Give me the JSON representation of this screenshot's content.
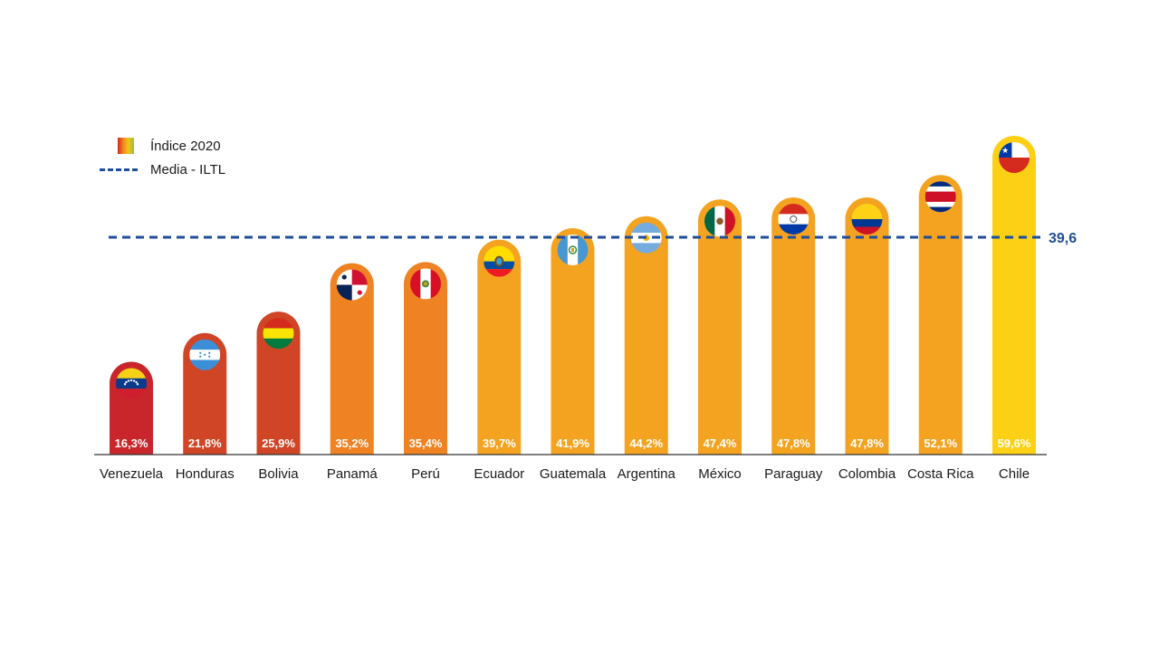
{
  "legend": {
    "index_label": "Índice 2020",
    "mean_label": "Media - ILTL"
  },
  "colors": {
    "red": "#c8262a",
    "red_orange": "#cf4526",
    "orange": "#ef8223",
    "amber": "#f4a321",
    "yellow": "#fcd015",
    "mean_line": "#1f4e9a",
    "axis": "#333333"
  },
  "chart_data": {
    "type": "bar",
    "title": "",
    "xlabel": "",
    "ylabel": "",
    "ylim": [
      0,
      65
    ],
    "categories": [
      "Venezuela",
      "Honduras",
      "Bolivia",
      "Panamá",
      "Perú",
      "Ecuador",
      "Guatemala",
      "Argentina",
      "México",
      "Paraguay",
      "Colombia",
      "Costa Rica",
      "Chile"
    ],
    "series": [
      {
        "values": [
          16.3,
          21.8,
          25.9,
          35.2,
          35.4,
          39.7,
          41.9,
          44.2,
          47.4,
          47.8,
          47.8,
          52.1,
          59.6
        ],
        "value_labels": [
          "16,3%",
          "21,8%",
          "25,9%",
          "35,2%",
          "35,4%",
          "39,7%",
          "41,9%",
          "44,2%",
          "47,4%",
          "47,8%",
          "47,8%",
          "52,1%",
          "59,6%"
        ],
        "bar_colors": [
          "#c8262a",
          "#cf4526",
          "#cf4526",
          "#ef8223",
          "#ef8223",
          "#f4a321",
          "#f4a321",
          "#f4a321",
          "#f4a321",
          "#f4a321",
          "#f4a321",
          "#f4a321",
          "#fcd015"
        ]
      }
    ],
    "flags": [
      "venezuela-flag",
      "honduras-flag",
      "bolivia-flag",
      "panama-flag",
      "peru-flag",
      "ecuador-flag",
      "guatemala-flag",
      "argentina-flag",
      "mexico-flag",
      "paraguay-flag",
      "colombia-flag",
      "costa-rica-flag",
      "chile-flag"
    ],
    "mean": {
      "value": 39.6,
      "label": "39,6"
    },
    "grid": false,
    "legend_position": "top-left"
  }
}
